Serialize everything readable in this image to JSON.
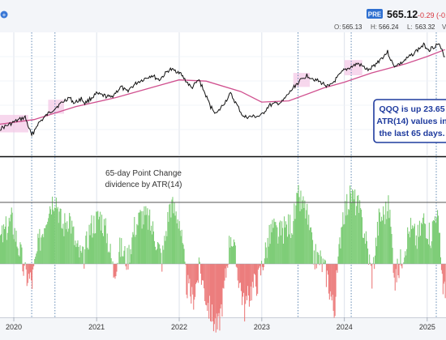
{
  "header": {
    "badge": "PRE",
    "price": "565.12",
    "change": "-0.29 (-0.0",
    "open_label": "O:",
    "open": "565.13",
    "high_label": "H:",
    "high": "566.24",
    "low_label": "L:",
    "low": "563.32",
    "trail": "V",
    "colors": {
      "badge_bg": "#2e6fd0",
      "change": "#d7333b",
      "price": "#111111"
    }
  },
  "annotation": {
    "lines": [
      "QQQ is up 23.65",
      "ATR(14) values in",
      "the last 65 days."
    ],
    "color": "#1f3b9e"
  },
  "indicator_label": {
    "line1": "65-day Point Change",
    "line2": "dividence by ATR(14)"
  },
  "colors": {
    "price_line": "#111111",
    "moving_average": "#d0508f",
    "highlight": "#f4c6e6",
    "positive_bars": "#7fcd78",
    "negative_bars": "#ec7d7d",
    "grid": "#d5dbe6",
    "event_lines": "#3f6fa3",
    "plus_icon": "#3a78d6"
  },
  "chart_data": [
    {
      "type": "line",
      "series": [
        {
          "values": [
            [
              "2019-11-01",
              0.2
            ],
            [
              "2020-01-15",
              0.27
            ],
            [
              "2020-02-20",
              0.3
            ],
            [
              "2020-03-20",
              0.14
            ],
            [
              "2020-04-15",
              0.24
            ],
            [
              "2020-06-01",
              0.33
            ],
            [
              "2020-07-15",
              0.4
            ],
            [
              "2020-09-01",
              0.47
            ],
            [
              "2020-09-25",
              0.42
            ],
            [
              "2020-10-25",
              0.46
            ],
            [
              "2020-11-10",
              0.42
            ],
            [
              "2020-12-31",
              0.5
            ],
            [
              "2021-03-05",
              0.47
            ],
            [
              "2021-04-20",
              0.56
            ],
            [
              "2021-05-12",
              0.52
            ],
            [
              "2021-07-01",
              0.6
            ],
            [
              "2021-09-01",
              0.66
            ],
            [
              "2021-10-05",
              0.62
            ],
            [
              "2021-11-19",
              0.71
            ],
            [
              "2021-12-31",
              0.69
            ],
            [
              "2022-02-24",
              0.55
            ],
            [
              "2022-03-30",
              0.62
            ],
            [
              "2022-05-20",
              0.39
            ],
            [
              "2022-06-16",
              0.33
            ],
            [
              "2022-08-16",
              0.5
            ],
            [
              "2022-10-13",
              0.3
            ],
            [
              "2022-12-28",
              0.31
            ],
            [
              "2023-02-02",
              0.4
            ],
            [
              "2023-04-01",
              0.43
            ],
            [
              "2023-06-01",
              0.58
            ],
            [
              "2023-07-19",
              0.66
            ],
            [
              "2023-10-26",
              0.56
            ],
            [
              "2023-12-29",
              0.7
            ],
            [
              "2024-03-01",
              0.76
            ],
            [
              "2024-04-19",
              0.7
            ],
            [
              "2024-07-10",
              0.86
            ],
            [
              "2024-08-05",
              0.74
            ],
            [
              "2024-09-06",
              0.76
            ],
            [
              "2024-10-15",
              0.82
            ],
            [
              "2024-12-16",
              0.92
            ],
            [
              "2025-01-10",
              0.88
            ],
            [
              "2025-02-19",
              0.93
            ],
            [
              "2025-03-20",
              0.82
            ]
          ]
        },
        {
          "values": [
            [
              "2019-11-01",
              0.24
            ],
            [
              "2020-03-31",
              0.28
            ],
            [
              "2020-09-30",
              0.39
            ],
            [
              "2021-03-31",
              0.47
            ],
            [
              "2021-09-30",
              0.57
            ],
            [
              "2021-12-31",
              0.62
            ],
            [
              "2022-04-30",
              0.61
            ],
            [
              "2022-09-30",
              0.52
            ],
            [
              "2022-12-31",
              0.43
            ],
            [
              "2023-04-30",
              0.44
            ],
            [
              "2023-09-30",
              0.55
            ],
            [
              "2023-12-31",
              0.6
            ],
            [
              "2024-04-30",
              0.68
            ],
            [
              "2024-09-30",
              0.76
            ],
            [
              "2024-12-31",
              0.82
            ],
            [
              "2025-03-20",
              0.88
            ]
          ]
        }
      ]
    },
    {
      "type": "area",
      "x_ticks": [
        "2020",
        "2021",
        "2022",
        "2023",
        "2024",
        "2025"
      ],
      "values": [
        [
          "2019-11-01",
          0.3
        ],
        [
          "2019-12-20",
          0.55
        ],
        [
          "2020-01-31",
          0.1
        ],
        [
          "2020-02-15",
          -0.12
        ],
        [
          "2020-03-20",
          -0.22
        ],
        [
          "2020-04-15",
          0.2
        ],
        [
          "2020-05-31",
          0.7
        ],
        [
          "2020-07-01",
          0.85
        ],
        [
          "2020-08-01",
          0.45
        ],
        [
          "2020-09-01",
          0.6
        ],
        [
          "2020-10-01",
          0.2
        ],
        [
          "2020-11-01",
          0.05
        ],
        [
          "2020-12-01",
          0.45
        ],
        [
          "2021-01-15",
          0.6
        ],
        [
          "2021-02-15",
          0.35
        ],
        [
          "2021-03-15",
          -0.1
        ],
        [
          "2021-04-15",
          0.2
        ],
        [
          "2021-05-15",
          0.05
        ],
        [
          "2021-06-15",
          0.45
        ],
        [
          "2021-07-15",
          0.6
        ],
        [
          "2021-08-15",
          0.55
        ],
        [
          "2021-09-15",
          0.35
        ],
        [
          "2021-10-15",
          0.05
        ],
        [
          "2021-11-20",
          0.75
        ],
        [
          "2021-12-31",
          0.55
        ],
        [
          "2022-01-31",
          -0.25
        ],
        [
          "2022-02-28",
          -0.45
        ],
        [
          "2022-03-31",
          -0.05
        ],
        [
          "2022-04-30",
          -0.45
        ],
        [
          "2022-05-31",
          -0.7
        ],
        [
          "2022-06-20",
          -0.8
        ],
        [
          "2022-07-15",
          -0.35
        ],
        [
          "2022-08-15",
          0.4
        ],
        [
          "2022-09-15",
          -0.1
        ],
        [
          "2022-10-15",
          -0.55
        ],
        [
          "2022-11-15",
          -0.3
        ],
        [
          "2022-12-15",
          -0.2
        ],
        [
          "2023-01-15",
          0.15
        ],
        [
          "2023-02-15",
          0.45
        ],
        [
          "2023-03-15",
          0.35
        ],
        [
          "2023-04-15",
          0.45
        ],
        [
          "2023-05-15",
          0.5
        ],
        [
          "2023-06-10",
          0.8
        ],
        [
          "2023-07-15",
          0.65
        ],
        [
          "2023-08-15",
          0.1
        ],
        [
          "2023-09-15",
          0.05
        ],
        [
          "2023-10-15",
          -0.15
        ],
        [
          "2023-11-15",
          -0.6
        ],
        [
          "2023-12-20",
          0.6
        ],
        [
          "2024-01-31",
          0.85
        ],
        [
          "2024-02-29",
          0.7
        ],
        [
          "2024-03-31",
          0.35
        ],
        [
          "2024-04-30",
          -0.15
        ],
        [
          "2024-05-31",
          0.55
        ],
        [
          "2024-06-30",
          0.65
        ],
        [
          "2024-07-15",
          0.7
        ],
        [
          "2024-08-10",
          -0.2
        ],
        [
          "2024-09-10",
          0.1
        ],
        [
          "2024-10-15",
          0.45
        ],
        [
          "2024-11-15",
          0.3
        ],
        [
          "2024-12-15",
          0.55
        ],
        [
          "2025-01-15",
          0.35
        ],
        [
          "2025-02-10",
          0.7
        ],
        [
          "2025-03-10",
          -0.25
        ],
        [
          "2025-03-20",
          -0.4
        ]
      ],
      "reference_line": "upper",
      "event_lines": [
        "2020-03-20",
        "2020-07-01",
        "2023-06-10",
        "2024-01-31",
        "2025-02-10"
      ]
    }
  ]
}
